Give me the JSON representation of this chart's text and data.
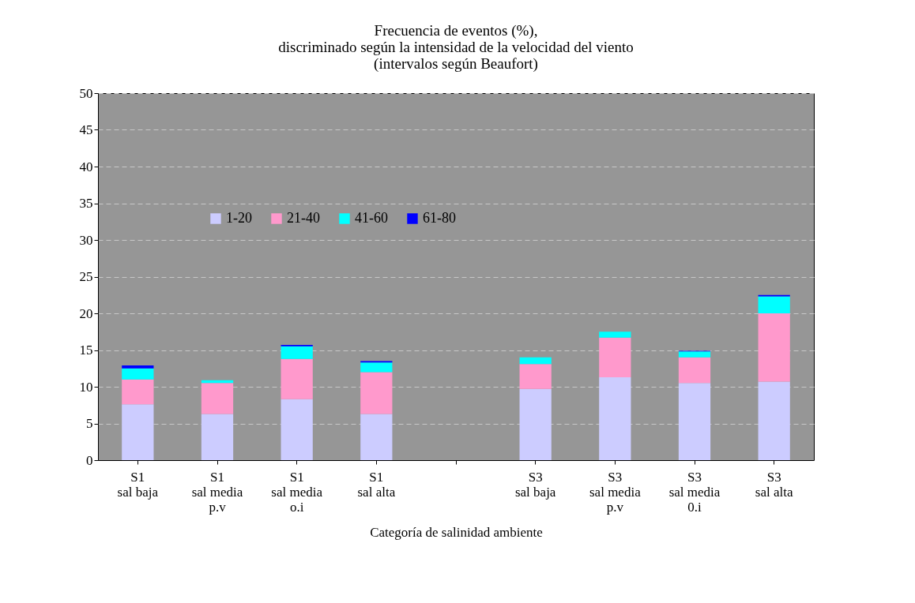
{
  "chart_data": {
    "type": "bar",
    "title": [
      "Frecuencia de eventos (%),",
      "discriminado según la intensidad de la velocidad del viento",
      "(intervalos según Beaufort)"
    ],
    "xlabel": "Categoría de salinidad ambiente",
    "categories": [
      "S1\nsal baja",
      "S1\nsal media\np.v",
      "S1\nsal media\no.i",
      "S1\nsal alta",
      null,
      "S3\nsal baja",
      "S3\nsal media\np.v",
      "S3\nsal media\n0.i",
      "S3\nsal alta"
    ],
    "stacked": true,
    "series": [
      {
        "name": "1-20",
        "color": "#ccccff",
        "values": [
          7.6,
          6.3,
          8.3,
          6.3,
          null,
          9.7,
          11.3,
          10.5,
          10.7
        ]
      },
      {
        "name": "21-40",
        "color": "#ff99cc",
        "values": [
          3.4,
          4.2,
          5.5,
          5.7,
          null,
          3.4,
          5.4,
          3.5,
          9.3
        ]
      },
      {
        "name": "41-60",
        "color": "#00ffff",
        "values": [
          1.5,
          0.4,
          1.7,
          1.3,
          null,
          0.9,
          0.8,
          0.8,
          2.3
        ]
      },
      {
        "name": "61-80",
        "color": "#0000ff",
        "values": [
          0.4,
          null,
          0.2,
          0.2,
          null,
          null,
          null,
          0.1,
          0.2
        ]
      }
    ],
    "ylim": [
      0,
      50
    ],
    "yticks": [
      0,
      5,
      10,
      15,
      20,
      25,
      30,
      35,
      40,
      45,
      50
    ],
    "grid": "y",
    "legend": "top left"
  }
}
